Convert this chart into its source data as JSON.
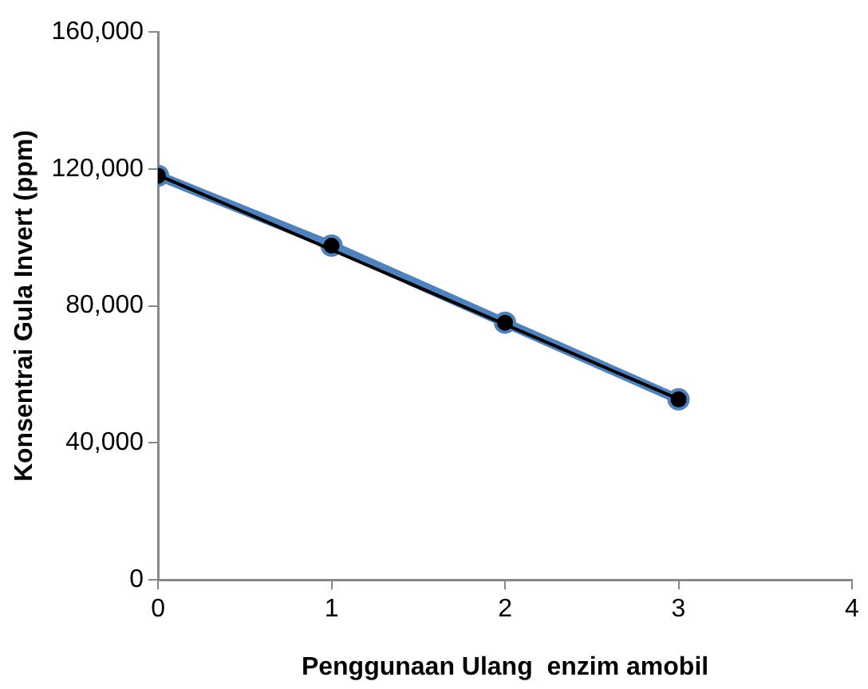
{
  "chart_data": {
    "type": "line",
    "xlabel": "Penggunaan Ulang  enzim amobil",
    "ylabel": "Konsentrai Gula Invert (ppm)",
    "x": [
      0,
      1,
      2,
      3
    ],
    "series": [
      {
        "color": "#4f81bd",
        "values": [
          118000,
          97600,
          75100,
          52700
        ],
        "marker": "circle"
      },
      {
        "type": "line",
        "color": "#000000",
        "x": [
          0,
          3
        ],
        "values": [
          118200,
          52800
        ],
        "marker": "none"
      }
    ],
    "xlim": [
      0,
      4
    ],
    "xticks": [
      0,
      1,
      2,
      3,
      4
    ],
    "ylim": [
      0,
      160000
    ],
    "yticks": [
      {
        "value": 0,
        "label": "0"
      },
      {
        "value": 40000,
        "label": "40,000"
      },
      {
        "value": 80000,
        "label": "80,000"
      },
      {
        "value": 120000,
        "label": "120,000"
      },
      {
        "value": 160000,
        "label": "160,000"
      }
    ],
    "grid": false,
    "legend": false
  }
}
